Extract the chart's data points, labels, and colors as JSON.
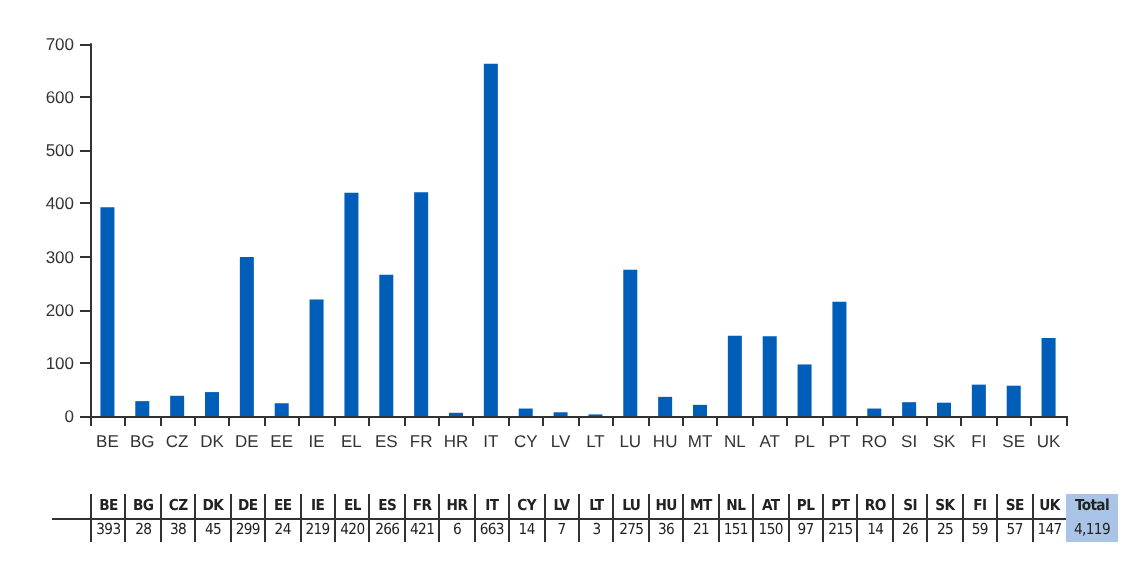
{
  "chart_data": {
    "type": "bar",
    "categories": [
      "BE",
      "BG",
      "CZ",
      "DK",
      "DE",
      "EE",
      "IE",
      "EL",
      "ES",
      "FR",
      "HR",
      "IT",
      "CY",
      "LV",
      "LT",
      "LU",
      "HU",
      "MT",
      "NL",
      "AT",
      "PL",
      "PT",
      "RO",
      "SI",
      "SK",
      "FI",
      "SE",
      "UK"
    ],
    "values": [
      393,
      28,
      38,
      45,
      299,
      24,
      219,
      420,
      266,
      421,
      6,
      663,
      14,
      7,
      3,
      275,
      36,
      21,
      151,
      150,
      97,
      215,
      14,
      26,
      25,
      59,
      57,
      147
    ],
    "color": "#005eb8",
    "ylim": [
      0,
      700
    ],
    "yticks": [
      0,
      100,
      200,
      300,
      400,
      500,
      600,
      700
    ],
    "grid": false,
    "data_labels": true,
    "annotations": [
      "Total",
      "4,119"
    ]
  }
}
